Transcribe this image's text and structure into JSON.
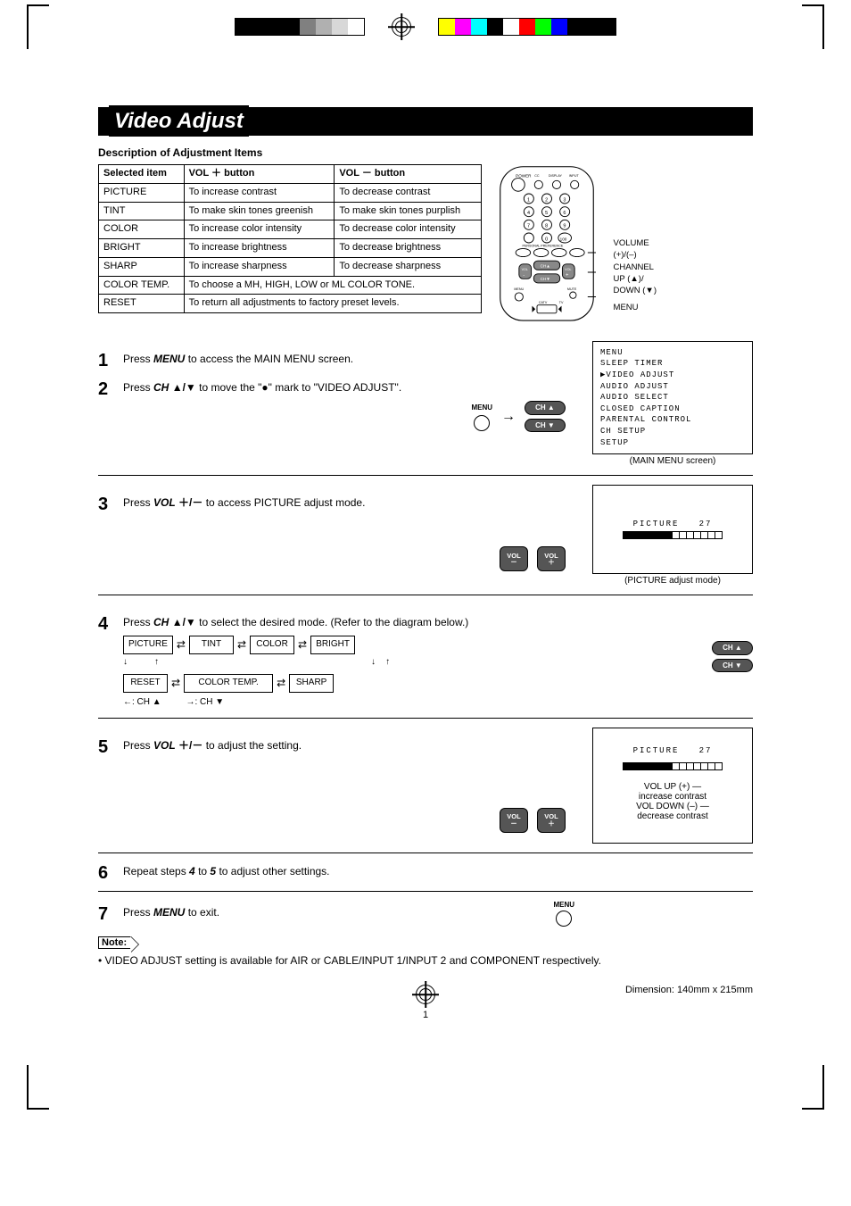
{
  "title": "Video Adjust",
  "desc_heading": "Description of Adjustment Items",
  "table": {
    "col_item": "Selected item",
    "col_plus_prefix": "VOL",
    "col_plus_sym": "＋",
    "col_plus_suffix": "button",
    "col_minus_prefix": "VOL",
    "col_minus_sym": "－",
    "col_minus_suffix": "button",
    "rows": [
      {
        "item": "PICTURE",
        "plus": "To increase contrast",
        "minus": "To decrease contrast"
      },
      {
        "item": "TINT",
        "plus": "To make skin tones greenish",
        "minus": "To make skin tones purplish"
      },
      {
        "item": "COLOR",
        "plus": "To increase color intensity",
        "minus": "To decrease color intensity"
      },
      {
        "item": "BRIGHT",
        "plus": "To increase brightness",
        "minus": "To decrease brightness"
      },
      {
        "item": "SHARP",
        "plus": "To increase sharpness",
        "minus": "To decrease sharpness"
      }
    ],
    "color_temp_item": "COLOR TEMP.",
    "color_temp_text": "To choose a MH, HIGH, LOW or ML COLOR TONE.",
    "reset_item": "RESET",
    "reset_text": "To return all adjustments to factory preset levels."
  },
  "remote_labels": {
    "volume": "VOLUME",
    "pm": "(+)/(–)",
    "channel": "CHANNEL",
    "updn": "UP (▲)/\nDOWN (▼)",
    "menu": "MENU"
  },
  "steps": {
    "s1": {
      "num": "1",
      "a": "Press ",
      "b": "MENU",
      "c": " to access the MAIN MENU screen."
    },
    "s2": {
      "num": "2",
      "a": "Press ",
      "b": "CH",
      "sym": "▲/▼",
      "c": " to move the \"●\" mark to \"VIDEO ADJUST\"."
    },
    "s3": {
      "num": "3",
      "a": "Press ",
      "b": "VOL",
      "sym": "＋/－",
      "c": " to access PICTURE adjust mode."
    },
    "s4": {
      "num": "4",
      "a": "Press ",
      "b": "CH",
      "sym": "▲/▼",
      "c": " to select the desired mode. (Refer to the diagram below.)"
    },
    "s5": {
      "num": "5",
      "a": "Press ",
      "b": "VOL",
      "sym": "＋/－",
      "c": " to adjust the setting."
    },
    "s6": {
      "num": "6",
      "a": "Repeat steps ",
      "b": "4",
      "c": " to ",
      "d": "5",
      "e": " to adjust other settings."
    },
    "s7": {
      "num": "7",
      "a": "Press ",
      "b": "MENU",
      "c": " to exit."
    }
  },
  "main_menu": {
    "title": "MENU",
    "items": [
      "SLEEP TIMER",
      "▶VIDEO ADJUST",
      " AUDIO ADJUST",
      " AUDIO SELECT",
      " CLOSED CAPTION",
      " PARENTAL CONTROL",
      " CH SETUP",
      " SETUP"
    ],
    "caption": "(MAIN MENU screen)"
  },
  "picture_osd": {
    "label": "PICTURE",
    "value": "27",
    "filled": 7,
    "total": 14,
    "caption": "(PICTURE adjust mode)"
  },
  "adjust_osd": {
    "label": "PICTURE",
    "value": "27",
    "filled": 7,
    "total": 14,
    "l1": "VOL UP (+)",
    "l2": "increase contrast",
    "l3": "VOL DOWN (–)",
    "l4": "decrease contrast"
  },
  "diagram": {
    "boxes": [
      "PICTURE",
      "TINT",
      "COLOR",
      "BRIGHT",
      "RESET",
      "COLOR TEMP.",
      "SHARP"
    ],
    "legend_l": "←: CH ▲",
    "legend_r": "→: CH ▼"
  },
  "buttons": {
    "menu": "MENU",
    "ch_up": "CH ▲",
    "ch_dn": "CH ▼",
    "vol_p_t": "VOL",
    "vol_p_b": "＋",
    "vol_m_t": "VOL",
    "vol_m_b": "－"
  },
  "note": {
    "label": "Note:",
    "text": "VIDEO ADJUST setting is available for AIR or CABLE/INPUT 1/INPUT 2 and COMPONENT respectively."
  },
  "footer": {
    "page": "1",
    "dim": "Dimension: 140mm x 215mm"
  },
  "colors": {
    "strip": [
      "#000000",
      "#000000",
      "#000000",
      "#000000",
      "#808080",
      "#b0b0b0",
      "#d8d8d8",
      "#ffffff",
      "#ffff00",
      "#ff00ff",
      "#00ffff",
      "#ff0000",
      "#00ff00",
      "#0000ff"
    ],
    "strip2": [
      "#ffff00",
      "#ff00ff",
      "#00ffff",
      "#000000",
      "#ffffff",
      "#ff0000",
      "#00ff00",
      "#0000ff",
      "#000000",
      "#000000",
      "#000000"
    ]
  }
}
